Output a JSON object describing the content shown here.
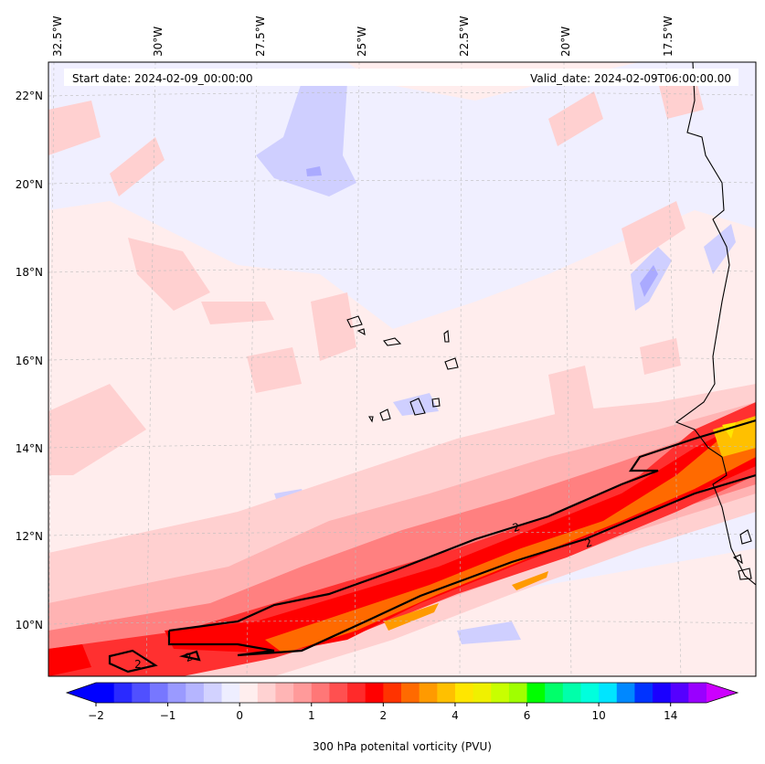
{
  "header": {
    "start_date": "Start date: 2024-02-09_00:00:00",
    "valid_date": "Valid_date: 2024-02-09T06:00:00.00"
  },
  "axes": {
    "longitude_labels": [
      "32.5°W",
      "30°W",
      "27.5°W",
      "25°W",
      "22.5°W",
      "20°W",
      "17.5°W"
    ],
    "latitude_labels": [
      "22°N",
      "20°N",
      "18°N",
      "16°N",
      "14°N",
      "12°N",
      "10°N"
    ]
  },
  "contour": {
    "level_label": "2"
  },
  "colorbar": {
    "label": "300 hPa potenital vorticity (PVU)",
    "tick_labels": [
      "−2",
      "−1",
      "0",
      "1",
      "2",
      "4",
      "6",
      "10",
      "14"
    ],
    "colors": [
      "#0000ff",
      "#2a2aff",
      "#5050ff",
      "#7777ff",
      "#9a9aff",
      "#b5b5ff",
      "#d2d2ff",
      "#eeeeff",
      "#ffeeee",
      "#ffd2d2",
      "#ffb5b5",
      "#ff9a9a",
      "#ff7777",
      "#ff5050",
      "#ff2a2a",
      "#ff0000",
      "#ff3300",
      "#ff6a00",
      "#ff9a00",
      "#ffc000",
      "#ffe600",
      "#f0f000",
      "#c8ff00",
      "#a0ff00",
      "#00ff00",
      "#00ff6a",
      "#00ffaa",
      "#00ffdd",
      "#00e5ff",
      "#0088ff",
      "#0033ff",
      "#1a00ff",
      "#5500ff",
      "#9900ff"
    ],
    "extend_min_color": "#0000ff",
    "extend_max_color": "#cc00ff"
  }
}
